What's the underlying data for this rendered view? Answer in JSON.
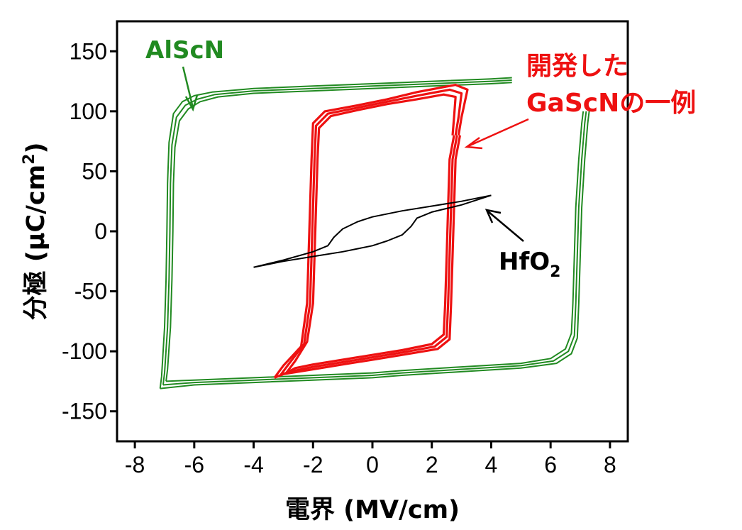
{
  "chart_data": {
    "type": "line",
    "xlabel": "電界 (MV/cm)",
    "ylabel_main": "分極 (μC/cm",
    "ylabel_sup": "2",
    "ylabel_close": ")",
    "xlim": [
      -8.6,
      8.6
    ],
    "ylim": [
      -175,
      175
    ],
    "xticks": [
      -8,
      -6,
      -4,
      -2,
      0,
      2,
      4,
      6,
      8
    ],
    "yticks": [
      150,
      100,
      50,
      0,
      -50,
      -100,
      -150
    ],
    "grid": false,
    "series": [
      {
        "name": "AlScN",
        "color": "#218a21",
        "loops": [
          {
            "upper": [
              [
                -6.95,
                -125
              ],
              [
                -6.9,
                -115
              ],
              [
                -6.8,
                -80
              ],
              [
                -6.75,
                -40
              ],
              [
                -6.72,
                0
              ],
              [
                -6.7,
                40
              ],
              [
                -6.65,
                70
              ],
              [
                -6.5,
                92
              ],
              [
                -6.2,
                102
              ],
              [
                -5.8,
                108
              ],
              [
                -5.2,
                112
              ],
              [
                -4,
                115
              ],
              [
                -2,
                117
              ],
              [
                0,
                119
              ],
              [
                2,
                121
              ],
              [
                4,
                123
              ],
              [
                4.7,
                124
              ]
            ],
            "lower": [
              [
                7.1,
                100
              ],
              [
                7.05,
                90
              ],
              [
                6.95,
                60
              ],
              [
                6.85,
                20
              ],
              [
                6.8,
                -20
              ],
              [
                6.75,
                -60
              ],
              [
                6.7,
                -85
              ],
              [
                6.5,
                -98
              ],
              [
                6,
                -106
              ],
              [
                5,
                -110
              ],
              [
                3,
                -113
              ],
              [
                1,
                -116
              ],
              [
                0,
                -118
              ],
              [
                -2,
                -120
              ],
              [
                -4,
                -122
              ],
              [
                -6,
                -124
              ],
              [
                -6.95,
                -125
              ]
            ]
          },
          {
            "upper": [
              [
                -7.05,
                -128
              ],
              [
                -7,
                -118
              ],
              [
                -6.9,
                -80
              ],
              [
                -6.85,
                -40
              ],
              [
                -6.82,
                0
              ],
              [
                -6.8,
                40
              ],
              [
                -6.75,
                72
              ],
              [
                -6.6,
                95
              ],
              [
                -6.3,
                105
              ],
              [
                -5.9,
                110
              ],
              [
                -5.3,
                114
              ],
              [
                -4,
                117
              ],
              [
                -2,
                119
              ],
              [
                0,
                121
              ],
              [
                2,
                123
              ],
              [
                4,
                125
              ],
              [
                4.7,
                126
              ]
            ],
            "lower": [
              [
                7.2,
                100
              ],
              [
                7.15,
                90
              ],
              [
                7.05,
                60
              ],
              [
                6.95,
                20
              ],
              [
                6.9,
                -20
              ],
              [
                6.85,
                -60
              ],
              [
                6.8,
                -87
              ],
              [
                6.6,
                -100
              ],
              [
                6.1,
                -108
              ],
              [
                5,
                -112
              ],
              [
                3,
                -115
              ],
              [
                1,
                -118
              ],
              [
                0,
                -120
              ],
              [
                -2,
                -122
              ],
              [
                -4,
                -124
              ],
              [
                -6,
                -126
              ],
              [
                -7.05,
                -128
              ]
            ]
          },
          {
            "upper": [
              [
                -7.15,
                -131
              ],
              [
                -7.1,
                -121
              ],
              [
                -7,
                -80
              ],
              [
                -6.95,
                -40
              ],
              [
                -6.92,
                0
              ],
              [
                -6.9,
                40
              ],
              [
                -6.85,
                74
              ],
              [
                -6.7,
                98
              ],
              [
                -6.4,
                108
              ],
              [
                -6,
                113
              ],
              [
                -5.4,
                116
              ],
              [
                -4,
                119
              ],
              [
                -2,
                121
              ],
              [
                0,
                123
              ],
              [
                2,
                125
              ],
              [
                4,
                127
              ],
              [
                4.7,
                128
              ]
            ],
            "lower": [
              [
                7.3,
                100
              ],
              [
                7.25,
                90
              ],
              [
                7.15,
                60
              ],
              [
                7.05,
                20
              ],
              [
                7,
                -20
              ],
              [
                6.95,
                -60
              ],
              [
                6.9,
                -89
              ],
              [
                6.7,
                -102
              ],
              [
                6.2,
                -110
              ],
              [
                5,
                -114
              ],
              [
                3,
                -117
              ],
              [
                1,
                -120
              ],
              [
                0,
                -122
              ],
              [
                -2,
                -124
              ],
              [
                -4,
                -126
              ],
              [
                -6,
                -128
              ],
              [
                -7.15,
                -131
              ]
            ]
          }
        ]
      },
      {
        "name": "GaScN",
        "color": "#ee1111",
        "loops": [
          {
            "upper": [
              [
                -2.9,
                -118
              ],
              [
                -2.6,
                -108
              ],
              [
                -2.2,
                -92
              ],
              [
                -2.0,
                -60
              ],
              [
                -1.95,
                -20
              ],
              [
                -1.9,
                20
              ],
              [
                -1.85,
                60
              ],
              [
                -1.8,
                86
              ],
              [
                -1.4,
                96
              ],
              [
                -0.5,
                101
              ],
              [
                0.5,
                106
              ],
              [
                1.5,
                110
              ],
              [
                2.4,
                114
              ],
              [
                2.8,
                112
              ],
              [
                2.75,
                95
              ],
              [
                2.7,
                80
              ]
            ],
            "lower": [
              [
                2.75,
                80
              ],
              [
                2.6,
                60
              ],
              [
                2.55,
                20
              ],
              [
                2.5,
                -20
              ],
              [
                2.45,
                -60
              ],
              [
                2.4,
                -86
              ],
              [
                2.0,
                -94
              ],
              [
                1,
                -99
              ],
              [
                0,
                -103
              ],
              [
                -1,
                -107
              ],
              [
                -2,
                -111
              ],
              [
                -2.6,
                -114
              ],
              [
                -2.9,
                -118
              ]
            ]
          },
          {
            "upper": [
              [
                -3.1,
                -120
              ],
              [
                -2.8,
                -110
              ],
              [
                -2.3,
                -94
              ],
              [
                -2.1,
                -60
              ],
              [
                -2.05,
                -20
              ],
              [
                -2.0,
                20
              ],
              [
                -1.95,
                60
              ],
              [
                -1.9,
                88
              ],
              [
                -1.5,
                98
              ],
              [
                -0.5,
                103
              ],
              [
                0.5,
                108
              ],
              [
                1.5,
                113
              ],
              [
                2.6,
                118
              ],
              [
                3.0,
                115
              ],
              [
                2.9,
                95
              ],
              [
                2.8,
                80
              ]
            ],
            "lower": [
              [
                2.85,
                80
              ],
              [
                2.7,
                60
              ],
              [
                2.65,
                20
              ],
              [
                2.6,
                -20
              ],
              [
                2.55,
                -60
              ],
              [
                2.5,
                -88
              ],
              [
                2.1,
                -96
              ],
              [
                1,
                -101
              ],
              [
                0,
                -105
              ],
              [
                -1,
                -109
              ],
              [
                -2,
                -113
              ],
              [
                -2.8,
                -117
              ],
              [
                -3.1,
                -120
              ]
            ]
          },
          {
            "upper": [
              [
                -3.3,
                -122
              ],
              [
                -3.0,
                -112
              ],
              [
                -2.4,
                -96
              ],
              [
                -2.2,
                -60
              ],
              [
                -2.15,
                -20
              ],
              [
                -2.1,
                20
              ],
              [
                -2.05,
                60
              ],
              [
                -2.0,
                90
              ],
              [
                -1.6,
                100
              ],
              [
                -0.5,
                105
              ],
              [
                0.5,
                110
              ],
              [
                1.5,
                116
              ],
              [
                2.8,
                122
              ],
              [
                3.2,
                118
              ],
              [
                3.0,
                95
              ],
              [
                2.9,
                80
              ]
            ],
            "lower": [
              [
                2.95,
                80
              ],
              [
                2.8,
                60
              ],
              [
                2.75,
                20
              ],
              [
                2.7,
                -20
              ],
              [
                2.65,
                -60
              ],
              [
                2.6,
                -90
              ],
              [
                2.2,
                -98
              ],
              [
                1,
                -103
              ],
              [
                0,
                -107
              ],
              [
                -1,
                -111
              ],
              [
                -2,
                -115
              ],
              [
                -3.0,
                -119
              ],
              [
                -3.3,
                -122
              ]
            ]
          }
        ]
      },
      {
        "name": "HfO2",
        "color": "#000000",
        "loops": [
          {
            "upper": [
              [
                -4,
                -30
              ],
              [
                -3,
                -24
              ],
              [
                -2,
                -17
              ],
              [
                -1.5,
                -12
              ],
              [
                -1.3,
                -5
              ],
              [
                -1.0,
                2
              ],
              [
                -0.5,
                8
              ],
              [
                0,
                12
              ],
              [
                1,
                17
              ],
              [
                2,
                21
              ],
              [
                3,
                25
              ],
              [
                4,
                30
              ]
            ],
            "lower": [
              [
                4,
                30
              ],
              [
                3,
                22
              ],
              [
                2,
                16
              ],
              [
                1.5,
                11
              ],
              [
                1.3,
                4
              ],
              [
                1.0,
                -3
              ],
              [
                0.5,
                -8
              ],
              [
                0,
                -12
              ],
              [
                -1,
                -17
              ],
              [
                -2,
                -21
              ],
              [
                -3,
                -25
              ],
              [
                -4,
                -30
              ]
            ]
          }
        ]
      }
    ],
    "annotations": [
      {
        "id": "alscn",
        "text": "AlScN",
        "color": "#218a21"
      },
      {
        "id": "gascn-1",
        "text": "開発した",
        "color": "#ee1111"
      },
      {
        "id": "gascn-2",
        "text": "GaScNの一例",
        "color": "#ee1111"
      },
      {
        "id": "hfo2",
        "text": "HfO",
        "sub": "2",
        "color": "#000000"
      }
    ]
  }
}
